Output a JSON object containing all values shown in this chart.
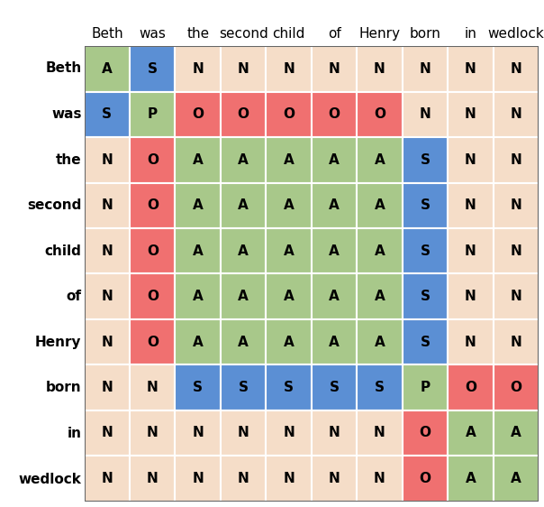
{
  "words": [
    "Beth",
    "was",
    "the",
    "second",
    "child",
    "of",
    "Henry",
    "born",
    "in",
    "wedlock"
  ],
  "grid": [
    [
      "A",
      "S",
      "N",
      "N",
      "N",
      "N",
      "N",
      "N",
      "N",
      "N"
    ],
    [
      "S",
      "P",
      "O",
      "O",
      "O",
      "O",
      "O",
      "N",
      "N",
      "N"
    ],
    [
      "N",
      "O",
      "A",
      "A",
      "A",
      "A",
      "A",
      "S",
      "N",
      "N"
    ],
    [
      "N",
      "O",
      "A",
      "A",
      "A",
      "A",
      "A",
      "S",
      "N",
      "N"
    ],
    [
      "N",
      "O",
      "A",
      "A",
      "A",
      "A",
      "A",
      "S",
      "N",
      "N"
    ],
    [
      "N",
      "O",
      "A",
      "A",
      "A",
      "A",
      "A",
      "S",
      "N",
      "N"
    ],
    [
      "N",
      "O",
      "A",
      "A",
      "A",
      "A",
      "A",
      "S",
      "N",
      "N"
    ],
    [
      "N",
      "N",
      "S",
      "S",
      "S",
      "S",
      "S",
      "P",
      "O",
      "O"
    ],
    [
      "N",
      "N",
      "N",
      "N",
      "N",
      "N",
      "N",
      "O",
      "A",
      "A"
    ],
    [
      "N",
      "N",
      "N",
      "N",
      "N",
      "N",
      "N",
      "O",
      "A",
      "A"
    ]
  ],
  "color_map": {
    "A": "#a8c88a",
    "S": "#5b8fd4",
    "P": "#a8c88a",
    "O": "#f07070",
    "N": "#f5ddc8"
  },
  "grid_line_color": "#ffffff",
  "background_color": "#ffffff",
  "cell_text_fontsize": 11,
  "label_fontsize": 11,
  "fig_width": 6.04,
  "fig_height": 5.62
}
